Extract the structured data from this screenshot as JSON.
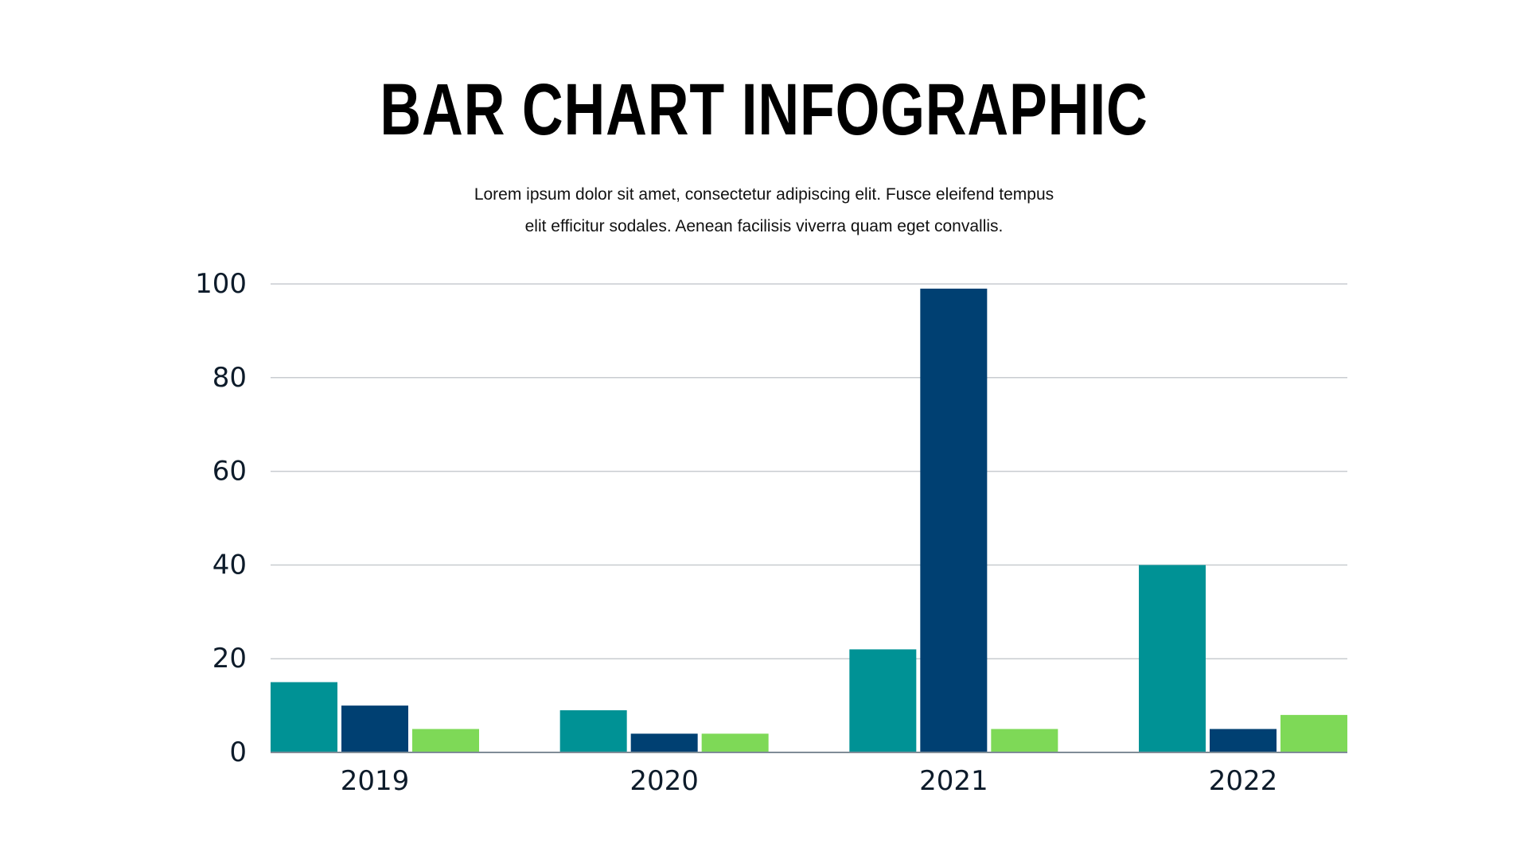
{
  "page": {
    "title": "BAR CHART INFOGRAPHIC",
    "subtitle_lines": [
      "Lorem ipsum dolor sit amet, consectetur adipiscing elit. Fusce eleifend tempus",
      "elit efficitur sodales. Aenean facilisis viverra quam eget convallis."
    ]
  },
  "chart_data": {
    "type": "bar",
    "categories": [
      "2019",
      "2020",
      "2021",
      "2022"
    ],
    "series": [
      {
        "values": [
          15,
          9,
          22,
          40
        ],
        "color": "#009295"
      },
      {
        "values": [
          10,
          4,
          99,
          5
        ],
        "color": "#004072"
      },
      {
        "values": [
          5,
          4,
          5,
          8
        ],
        "color": "#7ed957"
      }
    ],
    "ylim": [
      0,
      100
    ],
    "yticks": [
      0,
      20,
      40,
      60,
      80,
      100
    ],
    "xlabel": "",
    "ylabel": "",
    "grid": true,
    "legend": "none",
    "colors": {
      "grid": "#c8ccd0",
      "axis": "#7f8c97",
      "tick_text": "#0d1b2a"
    }
  }
}
